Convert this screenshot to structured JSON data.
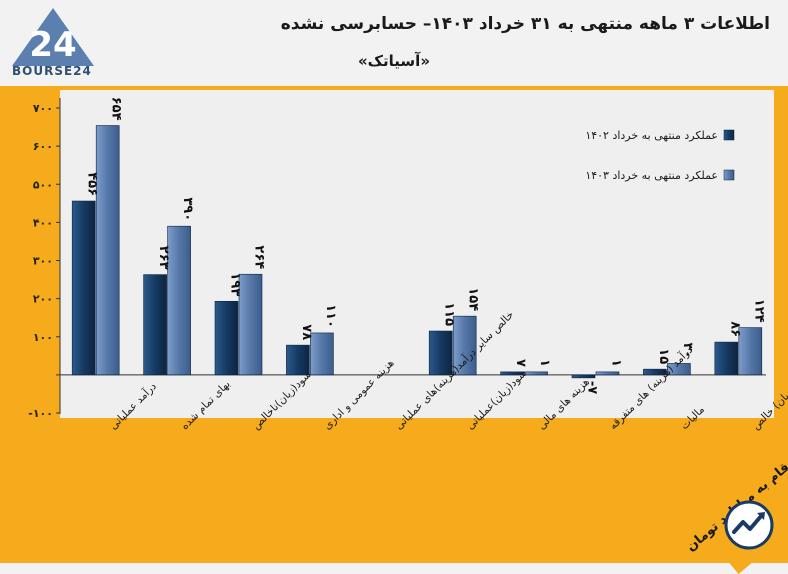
{
  "header": {
    "logo_text": "BOURSE24",
    "title": "اطلاعات ۳  ماهه منتهی به ۳۱ خرداد  ۱۴۰۳– حسابرسی نشده",
    "subtitle": "«آسیاتک»"
  },
  "footer": {
    "unit_label": "ارقام به میلیارد تومان"
  },
  "chart_data": {
    "type": "bar",
    "title": "",
    "xlabel": "",
    "ylabel": "",
    "ylim": [
      -100,
      700
    ],
    "yticks": [
      -100,
      0,
      100,
      200,
      300,
      400,
      500,
      600,
      700
    ],
    "ytick_labels": [
      "-۱۰۰",
      "",
      "۱۰۰",
      "۲۰۰",
      "۳۰۰",
      "۴۰۰",
      "۵۰۰",
      "۶۰۰",
      "۷۰۰"
    ],
    "grid": false,
    "legend_position": "top-right",
    "categories": [
      "درآمد عملیاتی",
      "بهای تمام شده",
      "سود(زیان)ناخالص",
      "هزینه عمومی و اداری",
      "خالص سایر درآمد(هزینه)های عملیاتی",
      "سود(زیان)عملیاتی",
      "هزینه های مالی",
      "درآمد (هزینه) های متفرقه",
      "مالیات",
      "سود(زیان) خالص"
    ],
    "series": [
      {
        "name": "عملکرد منتهی به خرداد ۱۴۰۲",
        "color": "#163a63",
        "values": [
          456,
          263,
          193,
          78,
          0,
          115,
          7,
          -7,
          15,
          86
        ],
        "labels": [
          "۴۵۶",
          "۲۶۳",
          "۱۹۳",
          "۷۸",
          "",
          "۱۱۵",
          "۷",
          "-۷",
          "۱۵",
          "۸۶"
        ]
      },
      {
        "name": "عملکرد منتهی به خرداد ۱۴۰۳",
        "color": "#5578a8",
        "values": [
          654,
          390,
          264,
          110,
          0,
          154,
          1,
          1,
          30,
          124
        ],
        "labels": [
          "۶۵۴",
          "۳۹۰",
          "۲۶۴",
          "۱۱۰",
          "",
          "۱۵۴",
          "۱",
          "۱",
          "۳۰",
          "۱۲۴"
        ]
      }
    ]
  }
}
